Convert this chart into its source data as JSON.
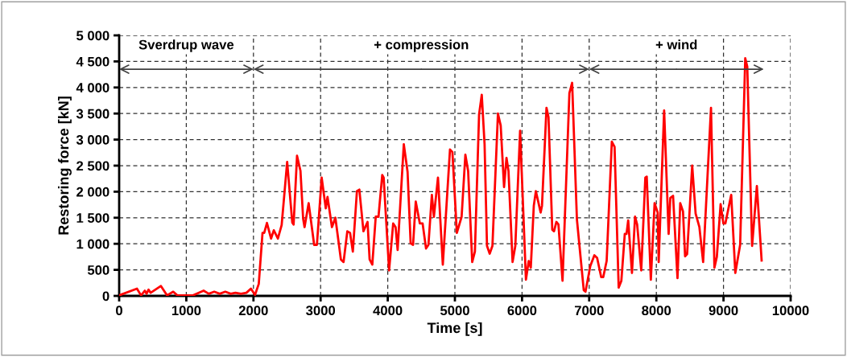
{
  "chart_data": {
    "type": "line",
    "xlabel": "Time [s]",
    "ylabel": "Restoring force [kN]",
    "xlim": [
      0,
      10000
    ],
    "xticks": [
      0,
      1000,
      2000,
      3000,
      4000,
      5000,
      6000,
      7000,
      8000,
      9000,
      10000
    ],
    "ylim": [
      0,
      5000
    ],
    "yticks": [
      0,
      500,
      {
        "value": 1000,
        "label": "1 000"
      },
      {
        "value": 1500,
        "label": "1 500"
      },
      {
        "value": 2000,
        "label": "2 000"
      },
      {
        "value": 2500,
        "label": "2 500"
      },
      {
        "value": 3000,
        "label": "3 000"
      },
      {
        "value": 3500,
        "label": "3 500"
      },
      {
        "value": 4000,
        "label": "4 000"
      },
      {
        "value": 4500,
        "label": "4 500"
      },
      {
        "value": 5000,
        "label": "5 000"
      }
    ],
    "grid": true,
    "line_style": "solid",
    "annotations": [
      "Sverdrup wave",
      "+ compression",
      "+ wind"
    ],
    "series": [
      {
        "color": "#ff0000",
        "x": [
          0,
          265,
          326,
          382,
          408,
          438,
          469,
          622,
          713,
          805,
          866,
          1100,
          1258,
          1335,
          1416,
          1498,
          1580,
          1661,
          1732,
          1814,
          1895,
          1962,
          2023,
          2079,
          2135,
          2160,
          2201,
          2262,
          2303,
          2364,
          2420,
          2502,
          2578,
          2598,
          2649,
          2700,
          2740,
          2761,
          2822,
          2904,
          2945,
          3016,
          3077,
          3103,
          3169,
          3220,
          3302,
          3342,
          3398,
          3439,
          3480,
          3541,
          3577,
          3638,
          3699,
          3730,
          3770,
          3821,
          3862,
          3918,
          3939,
          4020,
          4081,
          4117,
          4147,
          4239,
          4295,
          4341,
          4377,
          4417,
          4478,
          4519,
          4570,
          4606,
          4657,
          4687,
          4748,
          4820,
          4927,
          4963,
          5029,
          5100,
          5156,
          5197,
          5258,
          5298,
          5360,
          5400,
          5442,
          5478,
          5518,
          5559,
          5641,
          5682,
          5732,
          5768,
          5798,
          5859,
          5900,
          5971,
          6058,
          6099,
          6130,
          6175,
          6206,
          6277,
          6297,
          6364,
          6394,
          6450,
          6476,
          6511,
          6542,
          6603,
          6705,
          6746,
          6817,
          6919,
          6945,
          7016,
          7077,
          7118,
          7179,
          7209,
          7260,
          7337,
          7378,
          7439,
          7479,
          7530,
          7556,
          7581,
          7637,
          7683,
          7714,
          7775,
          7836,
          7857,
          7918,
          7974,
          8020,
          8035,
          8116,
          8183,
          8208,
          8249,
          8315,
          8356,
          8397,
          8428,
          8458,
          8534,
          8585,
          8641,
          8697,
          8814,
          8865,
          8901,
          8957,
          8998,
          9028,
          9115,
          9176,
          9248,
          9324,
          9354,
          9426,
          9497,
          9568
        ],
        "values": [
          10,
          140,
          10,
          100,
          40,
          120,
          60,
          190,
          10,
          80,
          10,
          10,
          100,
          40,
          80,
          40,
          80,
          40,
          60,
          40,
          60,
          140,
          20,
          230,
          1210,
          1210,
          1400,
          1100,
          1260,
          1100,
          1360,
          2570,
          1410,
          1370,
          2690,
          2400,
          1480,
          1320,
          1780,
          980,
          980,
          2270,
          1680,
          1900,
          1320,
          1500,
          700,
          650,
          1240,
          1210,
          850,
          2010,
          2040,
          1240,
          1420,
          700,
          600,
          1520,
          1520,
          2320,
          2270,
          490,
          1390,
          1320,
          880,
          2910,
          2380,
          1010,
          980,
          1810,
          1390,
          1390,
          910,
          980,
          1940,
          1520,
          2270,
          600,
          2810,
          2760,
          1210,
          1520,
          2710,
          2400,
          650,
          850,
          3480,
          3860,
          2910,
          960,
          810,
          960,
          3500,
          3270,
          2090,
          2650,
          2400,
          650,
          960,
          3170,
          310,
          670,
          540,
          1730,
          2010,
          1600,
          1730,
          3610,
          3430,
          1270,
          1240,
          1420,
          1370,
          290,
          3890,
          4090,
          1470,
          110,
          80,
          570,
          780,
          730,
          360,
          360,
          670,
          2960,
          2860,
          160,
          290,
          1190,
          1190,
          1450,
          440,
          1520,
          1370,
          490,
          2270,
          2290,
          310,
          1780,
          1600,
          650,
          3560,
          1190,
          1880,
          1920,
          340,
          1780,
          1620,
          760,
          800,
          2500,
          1580,
          1320,
          650,
          3610,
          540,
          750,
          1760,
          1390,
          1390,
          1940,
          440,
          980,
          4560,
          4400,
          960,
          2110,
          680
        ]
      }
    ]
  }
}
